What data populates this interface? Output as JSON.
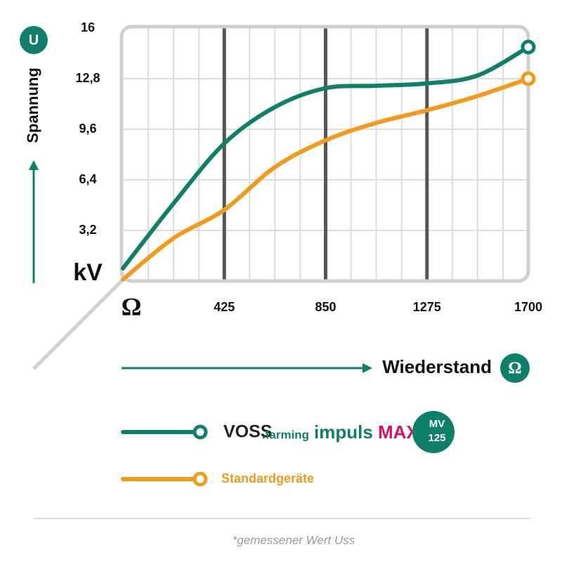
{
  "chart_data": {
    "type": "line",
    "y_label": "Spannung",
    "y_symbol": "U",
    "y_unit": "kV",
    "x_label": "Wiederstand",
    "x_symbol": "Ω",
    "x": [
      0,
      212,
      425,
      637,
      850,
      1062,
      1275,
      1487,
      1700
    ],
    "series": [
      {
        "color": "#0e7f68",
        "values": [
          0.8,
          4.9,
          8.7,
          11.0,
          12.2,
          12.35,
          12.5,
          13.0,
          14.8
        ]
      },
      {
        "name": "Standardgeräte",
        "color": "#f39a1b",
        "values": [
          0.1,
          2.7,
          4.5,
          7.2,
          8.9,
          10.0,
          10.8,
          11.7,
          12.8
        ]
      }
    ],
    "legend_logo": {
      "brand": "VOSS",
      "brand_suffix": ".farming",
      "product": "impuls",
      "product_suffix": "MAX",
      "badge_top": "MV",
      "badge_bottom": "125"
    },
    "xlim": [
      0,
      1700
    ],
    "ylim": [
      0,
      16
    ],
    "xticks": [
      {
        "value": 0,
        "label": "Ω"
      },
      425,
      850,
      1275,
      1700
    ],
    "yticks": [
      {
        "value": 3.2,
        "label": "3,2"
      },
      {
        "value": 6.4,
        "label": "6,4"
      },
      {
        "value": 9.6,
        "label": "9,6"
      },
      {
        "value": 12.8,
        "label": "12,8"
      },
      16
    ],
    "grid": true,
    "footnote": "*gemessener Wert Uss"
  }
}
